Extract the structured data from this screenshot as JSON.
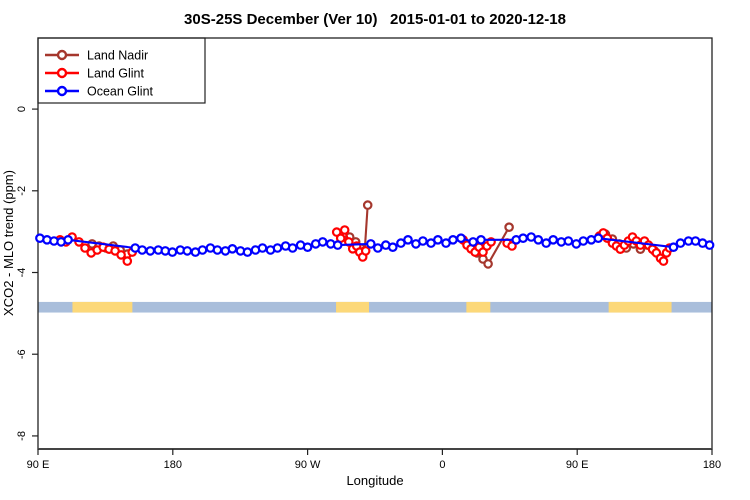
{
  "chart_data": {
    "type": "scatter",
    "title": "30S-25S December (Ver 10)   2015-01-01 to 2020-12-18",
    "xlabel": "Longitude",
    "ylabel": "XCO2 - MLO trend (ppm)",
    "xlim": [
      90,
      540
    ],
    "ylim": [
      -8.32,
      1.74
    ],
    "grid": false,
    "x_ticks": [
      {
        "value": 90,
        "label": "90 E"
      },
      {
        "value": 180,
        "label": "180"
      },
      {
        "value": 270,
        "label": "90 W"
      },
      {
        "value": 360,
        "label": "0"
      },
      {
        "value": 450,
        "label": "90 E"
      },
      {
        "value": 540,
        "label": "180"
      }
    ],
    "y_ticks": [
      {
        "value": 0,
        "label": "0"
      },
      {
        "value": -2,
        "label": "-2"
      },
      {
        "value": -4,
        "label": "-4"
      },
      {
        "value": -6,
        "label": "-6"
      },
      {
        "value": -8,
        "label": "-8"
      }
    ],
    "legend": {
      "position": "top-left",
      "entries": [
        {
          "label": "Land Nadir",
          "color": "#A5372D"
        },
        {
          "label": "Land Glint",
          "color": "#FF0000"
        },
        {
          "label": "Ocean Glint",
          "color": "#0000FF"
        }
      ]
    },
    "surface_band": {
      "y_top": -4.72,
      "y_bottom": -4.98,
      "ocean_color": "#A9BEDB",
      "land_color": "#FCD879",
      "extent": [
        90,
        540
      ],
      "land_segments": [
        [
          113,
          153
        ],
        [
          289,
          311
        ],
        [
          376,
          392
        ],
        [
          471,
          513
        ]
      ]
    },
    "series": [
      {
        "name": "Land Nadir",
        "color": "#A5372D",
        "segments": [
          [
            [
              126.1,
              -3.3
            ],
            [
              130.8,
              -3.35
            ],
            [
              135.5,
              -3.4
            ],
            [
              140.2,
              -3.35
            ],
            [
              144.9,
              -3.45
            ],
            [
              149.6,
              -3.55
            ]
          ],
          [
            [
              298.1,
              -3.13
            ],
            [
              302.1,
              -3.25
            ],
            [
              305.5,
              -3.4
            ],
            [
              308.1,
              -3.47
            ],
            [
              310.1,
              -2.35
            ]
          ],
          [
            [
              379.1,
              -3.38
            ],
            [
              383.1,
              -3.52
            ],
            [
              387.1,
              -3.67
            ],
            [
              390.5,
              -3.79
            ],
            [
              404.5,
              -2.89
            ]
          ],
          [
            [
              468.8,
              -3.06
            ],
            [
              473.5,
              -3.18
            ],
            [
              478.2,
              -3.3
            ],
            [
              482.8,
              -3.4
            ],
            [
              487.5,
              -3.3
            ],
            [
              492.2,
              -3.43
            ],
            [
              496.9,
              -3.33
            ],
            [
              501.6,
              -3.47
            ]
          ]
        ]
      },
      {
        "name": "Land Glint",
        "color": "#FF0000",
        "segments": [
          [
            [
              104.7,
              -3.2
            ],
            [
              108.7,
              -3.25
            ],
            [
              112.8,
              -3.13
            ],
            [
              117.4,
              -3.25
            ],
            [
              121.4,
              -3.4
            ],
            [
              125.5,
              -3.52
            ],
            [
              129.5,
              -3.45
            ],
            [
              133.5,
              -3.38
            ],
            [
              137.5,
              -3.43
            ],
            [
              141.5,
              -3.47
            ],
            [
              145.5,
              -3.57
            ],
            [
              149.6,
              -3.72
            ],
            [
              152.9,
              -3.5
            ]
          ],
          [
            [
              289.4,
              -3.01
            ],
            [
              292.1,
              -3.16
            ],
            [
              294.8,
              -2.96
            ],
            [
              297.5,
              -3.25
            ],
            [
              300.1,
              -3.42
            ],
            [
              302.8,
              -3.35
            ],
            [
              304.8,
              -3.5
            ],
            [
              306.8,
              -3.62
            ],
            [
              308.8,
              -3.47
            ]
          ],
          [
            [
              373.8,
              -3.2
            ],
            [
              376.4,
              -3.33
            ],
            [
              379.1,
              -3.42
            ],
            [
              381.8,
              -3.5
            ],
            [
              384.5,
              -3.38
            ],
            [
              387.1,
              -3.5
            ],
            [
              389.8,
              -3.35
            ],
            [
              392.5,
              -3.25
            ]
          ],
          [
            [
              403.2,
              -3.28
            ],
            [
              406.5,
              -3.35
            ]
          ],
          [
            [
              464.8,
              -3.11
            ],
            [
              467.4,
              -3.03
            ],
            [
              470.1,
              -3.16
            ],
            [
              473.5,
              -3.28
            ],
            [
              476.2,
              -3.35
            ],
            [
              478.8,
              -3.43
            ],
            [
              481.5,
              -3.33
            ],
            [
              484.2,
              -3.23
            ],
            [
              486.9,
              -3.13
            ],
            [
              489.5,
              -3.23
            ],
            [
              492.2,
              -3.33
            ],
            [
              494.9,
              -3.23
            ],
            [
              497.6,
              -3.33
            ],
            [
              500.3,
              -3.43
            ],
            [
              502.9,
              -3.52
            ],
            [
              505.6,
              -3.65
            ],
            [
              507.6,
              -3.72
            ],
            [
              509.6,
              -3.52
            ],
            [
              511.6,
              -3.4
            ]
          ]
        ]
      },
      {
        "name": "Ocean Glint",
        "color": "#0000FF",
        "segments": [
          [
            [
              91.3,
              -3.16
            ],
            [
              96.0,
              -3.2
            ],
            [
              100.7,
              -3.23
            ],
            [
              105.4,
              -3.25
            ],
            [
              110.1,
              -3.2
            ],
            [
              154.9,
              -3.4
            ],
            [
              159.6,
              -3.45
            ],
            [
              165.0,
              -3.47
            ],
            [
              170.3,
              -3.45
            ],
            [
              175.0,
              -3.47
            ],
            [
              179.7,
              -3.5
            ],
            [
              185.0,
              -3.45
            ],
            [
              189.7,
              -3.47
            ],
            [
              195.1,
              -3.5
            ],
            [
              199.8,
              -3.45
            ],
            [
              205.1,
              -3.4
            ],
            [
              209.8,
              -3.45
            ],
            [
              215.1,
              -3.47
            ],
            [
              219.8,
              -3.42
            ],
            [
              225.2,
              -3.47
            ],
            [
              229.9,
              -3.5
            ],
            [
              235.2,
              -3.45
            ],
            [
              239.9,
              -3.4
            ],
            [
              245.2,
              -3.45
            ],
            [
              249.9,
              -3.4
            ],
            [
              255.3,
              -3.35
            ],
            [
              260.0,
              -3.4
            ],
            [
              265.3,
              -3.33
            ],
            [
              270.0,
              -3.38
            ],
            [
              275.4,
              -3.3
            ],
            [
              280.1,
              -3.25
            ],
            [
              285.4,
              -3.3
            ],
            [
              290.1,
              -3.33
            ],
            [
              312.2,
              -3.3
            ],
            [
              316.9,
              -3.4
            ],
            [
              322.2,
              -3.33
            ],
            [
              326.9,
              -3.38
            ],
            [
              332.3,
              -3.28
            ],
            [
              337.0,
              -3.2
            ],
            [
              342.3,
              -3.3
            ],
            [
              347.0,
              -3.23
            ],
            [
              352.4,
              -3.28
            ],
            [
              357.0,
              -3.2
            ],
            [
              362.4,
              -3.28
            ],
            [
              367.1,
              -3.2
            ],
            [
              372.4,
              -3.16
            ],
            [
              380.5,
              -3.25
            ],
            [
              385.8,
              -3.2
            ],
            [
              409.3,
              -3.2
            ],
            [
              413.9,
              -3.16
            ],
            [
              419.3,
              -3.13
            ],
            [
              424.0,
              -3.2
            ],
            [
              429.3,
              -3.28
            ],
            [
              434.0,
              -3.2
            ],
            [
              439.4,
              -3.25
            ],
            [
              444.1,
              -3.23
            ],
            [
              449.4,
              -3.3
            ],
            [
              454.1,
              -3.23
            ],
            [
              459.4,
              -3.2
            ],
            [
              464.1,
              -3.16
            ],
            [
              514.3,
              -3.38
            ],
            [
              519.0,
              -3.28
            ],
            [
              524.3,
              -3.23
            ],
            [
              529.0,
              -3.23
            ],
            [
              533.7,
              -3.28
            ],
            [
              538.4,
              -3.33
            ]
          ]
        ]
      }
    ]
  }
}
